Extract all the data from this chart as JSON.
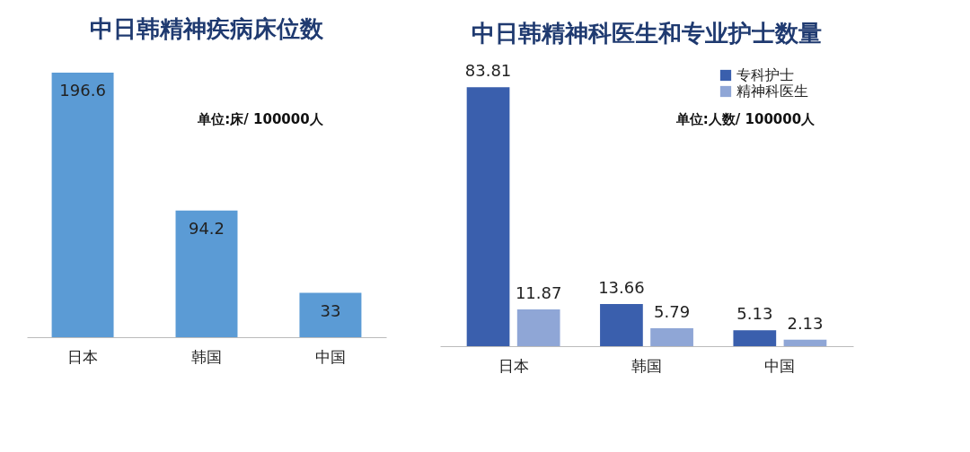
{
  "chart_data": [
    {
      "type": "bar",
      "title": "中日韩精神疾病床位数",
      "categories": [
        "日本",
        "韩国",
        "中国"
      ],
      "values": [
        196.6,
        94.2,
        33
      ],
      "color": "#5b9bd5",
      "data_labels": true,
      "annotations": [
        "单位:床/ 100000人"
      ]
    },
    {
      "type": "bar",
      "title": "中日韩精神科医生和专业护士数量",
      "categories": [
        "日本",
        "韩国",
        "中国"
      ],
      "series": [
        {
          "name": "专科护士",
          "color": "#3a5fad",
          "values": [
            83.81,
            13.66,
            5.13
          ]
        },
        {
          "name": "精神科医生",
          "color": "#8fa6d6",
          "values": [
            11.87,
            5.79,
            2.13
          ]
        }
      ],
      "data_labels": true,
      "legend": "right",
      "annotations": [
        "单位:人数/ 100000人"
      ]
    }
  ]
}
